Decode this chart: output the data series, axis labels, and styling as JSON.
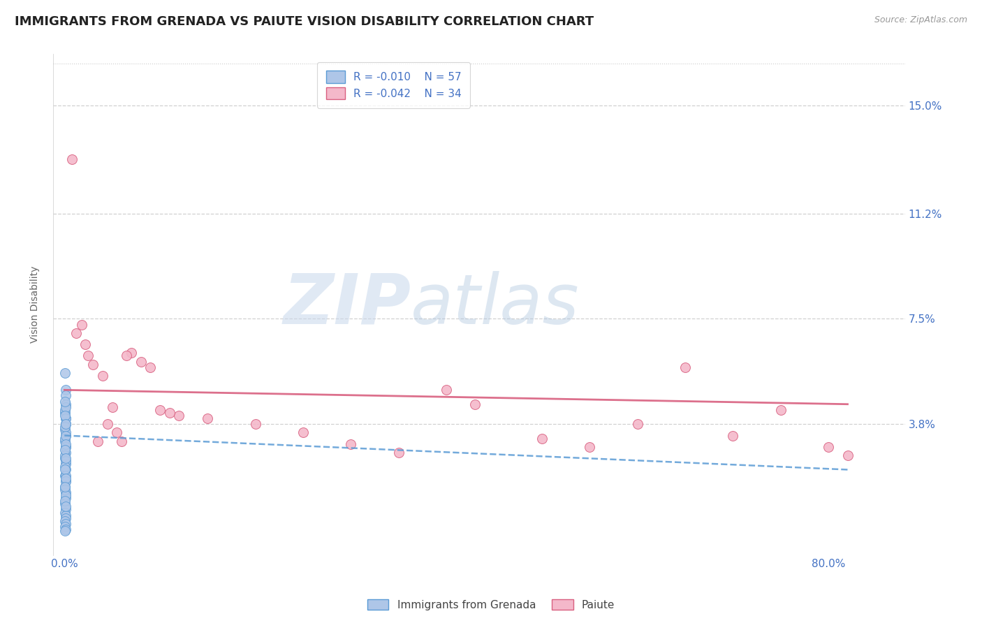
{
  "title": "IMMIGRANTS FROM GRENADA VS PAIUTE VISION DISABILITY CORRELATION CHART",
  "source": "Source: ZipAtlas.com",
  "ylabel": "Vision Disability",
  "legend_labels": [
    "Immigrants from Grenada",
    "Paiute"
  ],
  "legend_r_values": [
    "R = -0.010",
    "R = -0.042"
  ],
  "legend_n_values": [
    "N = 57",
    "N = 34"
  ],
  "y_ticks_right": [
    0.038,
    0.075,
    0.112,
    0.15
  ],
  "y_tick_labels_right": [
    "3.8%",
    "7.5%",
    "11.2%",
    "15.0%"
  ],
  "xlim": [
    -0.012,
    0.88
  ],
  "ylim": [
    -0.008,
    0.168
  ],
  "blue_color": "#aec6e8",
  "blue_edge": "#5b9bd5",
  "pink_color": "#f4b8ca",
  "pink_edge": "#d96080",
  "background_color": "#ffffff",
  "grid_color": "#cccccc",
  "watermark_zip": "ZIP",
  "watermark_atlas": "atlas",
  "blue_scatter_x": [
    0.0008,
    0.001,
    0.0012,
    0.0015,
    0.0008,
    0.001,
    0.0012,
    0.0008,
    0.001,
    0.0008,
    0.001,
    0.0015,
    0.0008,
    0.001,
    0.0012,
    0.0008,
    0.001,
    0.0008,
    0.001,
    0.0012,
    0.0008,
    0.001,
    0.0008,
    0.001,
    0.0012,
    0.0008,
    0.001,
    0.0008,
    0.001,
    0.0008,
    0.001,
    0.0012,
    0.0008,
    0.001,
    0.0008,
    0.001,
    0.0008,
    0.001,
    0.0012,
    0.0008,
    0.001,
    0.0008,
    0.001,
    0.0008,
    0.001,
    0.0008,
    0.001,
    0.0012,
    0.0008,
    0.001,
    0.0008,
    0.001,
    0.0008,
    0.001,
    0.0008,
    0.001,
    0.0008
  ],
  "blue_scatter_y": [
    0.056,
    0.05,
    0.048,
    0.045,
    0.042,
    0.04,
    0.038,
    0.036,
    0.034,
    0.032,
    0.03,
    0.028,
    0.026,
    0.024,
    0.022,
    0.02,
    0.018,
    0.016,
    0.014,
    0.012,
    0.01,
    0.008,
    0.007,
    0.006,
    0.005,
    0.004,
    0.003,
    0.002,
    0.001,
    0.0005,
    0.038,
    0.035,
    0.033,
    0.03,
    0.027,
    0.025,
    0.023,
    0.02,
    0.018,
    0.015,
    0.013,
    0.011,
    0.009,
    0.043,
    0.04,
    0.037,
    0.034,
    0.031,
    0.029,
    0.026,
    0.022,
    0.019,
    0.016,
    0.044,
    0.041,
    0.038,
    0.046
  ],
  "pink_scatter_x": [
    0.008,
    0.012,
    0.018,
    0.022,
    0.025,
    0.03,
    0.04,
    0.05,
    0.06,
    0.07,
    0.08,
    0.09,
    0.1,
    0.12,
    0.15,
    0.2,
    0.25,
    0.3,
    0.35,
    0.4,
    0.43,
    0.5,
    0.55,
    0.6,
    0.65,
    0.7,
    0.75,
    0.8,
    0.82,
    0.045,
    0.055,
    0.065,
    0.035,
    0.11
  ],
  "pink_scatter_y": [
    0.131,
    0.07,
    0.073,
    0.066,
    0.062,
    0.059,
    0.055,
    0.044,
    0.032,
    0.063,
    0.06,
    0.058,
    0.043,
    0.041,
    0.04,
    0.038,
    0.035,
    0.031,
    0.028,
    0.05,
    0.045,
    0.033,
    0.03,
    0.038,
    0.058,
    0.034,
    0.043,
    0.03,
    0.027,
    0.038,
    0.035,
    0.062,
    0.032,
    0.042
  ],
  "pink_trend_x": [
    0.0,
    0.82
  ],
  "pink_trend_y": [
    0.05,
    0.045
  ],
  "blue_trend_x": [
    0.0,
    0.82
  ],
  "blue_trend_y": [
    0.034,
    0.022
  ],
  "title_fontsize": 13,
  "axis_label_fontsize": 10,
  "tick_fontsize": 11,
  "legend_fontsize": 11
}
